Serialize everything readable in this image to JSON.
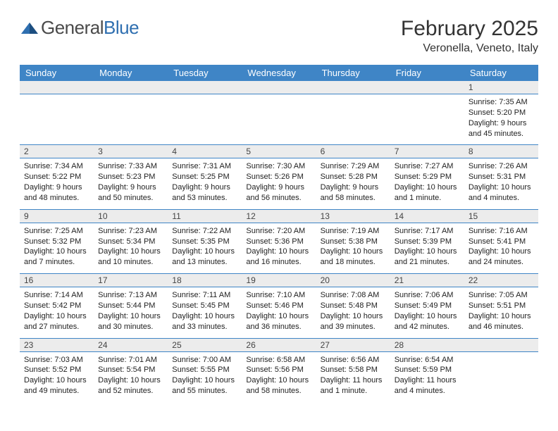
{
  "brand": {
    "part1": "General",
    "part2": "Blue"
  },
  "title": "February 2025",
  "location": "Veronella, Veneto, Italy",
  "colors": {
    "header_bg": "#3f85c6",
    "rule": "#3f85c6",
    "numrow_bg": "#ececec",
    "text": "#222222"
  },
  "font": {
    "family": "Arial",
    "title_size_pt": 22,
    "location_size_pt": 12,
    "dayhead_size_pt": 10,
    "cell_size_pt": 8
  },
  "weekday_labels": [
    "Sunday",
    "Monday",
    "Tuesday",
    "Wednesday",
    "Thursday",
    "Friday",
    "Saturday"
  ],
  "weeks": [
    [
      null,
      null,
      null,
      null,
      null,
      null,
      {
        "d": "1",
        "sunrise": "7:35 AM",
        "sunset": "5:20 PM",
        "daylight": "9 hours and 45 minutes."
      }
    ],
    [
      {
        "d": "2",
        "sunrise": "7:34 AM",
        "sunset": "5:22 PM",
        "daylight": "9 hours and 48 minutes."
      },
      {
        "d": "3",
        "sunrise": "7:33 AM",
        "sunset": "5:23 PM",
        "daylight": "9 hours and 50 minutes."
      },
      {
        "d": "4",
        "sunrise": "7:31 AM",
        "sunset": "5:25 PM",
        "daylight": "9 hours and 53 minutes."
      },
      {
        "d": "5",
        "sunrise": "7:30 AM",
        "sunset": "5:26 PM",
        "daylight": "9 hours and 56 minutes."
      },
      {
        "d": "6",
        "sunrise": "7:29 AM",
        "sunset": "5:28 PM",
        "daylight": "9 hours and 58 minutes."
      },
      {
        "d": "7",
        "sunrise": "7:27 AM",
        "sunset": "5:29 PM",
        "daylight": "10 hours and 1 minute."
      },
      {
        "d": "8",
        "sunrise": "7:26 AM",
        "sunset": "5:31 PM",
        "daylight": "10 hours and 4 minutes."
      }
    ],
    [
      {
        "d": "9",
        "sunrise": "7:25 AM",
        "sunset": "5:32 PM",
        "daylight": "10 hours and 7 minutes."
      },
      {
        "d": "10",
        "sunrise": "7:23 AM",
        "sunset": "5:34 PM",
        "daylight": "10 hours and 10 minutes."
      },
      {
        "d": "11",
        "sunrise": "7:22 AM",
        "sunset": "5:35 PM",
        "daylight": "10 hours and 13 minutes."
      },
      {
        "d": "12",
        "sunrise": "7:20 AM",
        "sunset": "5:36 PM",
        "daylight": "10 hours and 16 minutes."
      },
      {
        "d": "13",
        "sunrise": "7:19 AM",
        "sunset": "5:38 PM",
        "daylight": "10 hours and 18 minutes."
      },
      {
        "d": "14",
        "sunrise": "7:17 AM",
        "sunset": "5:39 PM",
        "daylight": "10 hours and 21 minutes."
      },
      {
        "d": "15",
        "sunrise": "7:16 AM",
        "sunset": "5:41 PM",
        "daylight": "10 hours and 24 minutes."
      }
    ],
    [
      {
        "d": "16",
        "sunrise": "7:14 AM",
        "sunset": "5:42 PM",
        "daylight": "10 hours and 27 minutes."
      },
      {
        "d": "17",
        "sunrise": "7:13 AM",
        "sunset": "5:44 PM",
        "daylight": "10 hours and 30 minutes."
      },
      {
        "d": "18",
        "sunrise": "7:11 AM",
        "sunset": "5:45 PM",
        "daylight": "10 hours and 33 minutes."
      },
      {
        "d": "19",
        "sunrise": "7:10 AM",
        "sunset": "5:46 PM",
        "daylight": "10 hours and 36 minutes."
      },
      {
        "d": "20",
        "sunrise": "7:08 AM",
        "sunset": "5:48 PM",
        "daylight": "10 hours and 39 minutes."
      },
      {
        "d": "21",
        "sunrise": "7:06 AM",
        "sunset": "5:49 PM",
        "daylight": "10 hours and 42 minutes."
      },
      {
        "d": "22",
        "sunrise": "7:05 AM",
        "sunset": "5:51 PM",
        "daylight": "10 hours and 46 minutes."
      }
    ],
    [
      {
        "d": "23",
        "sunrise": "7:03 AM",
        "sunset": "5:52 PM",
        "daylight": "10 hours and 49 minutes."
      },
      {
        "d": "24",
        "sunrise": "7:01 AM",
        "sunset": "5:54 PM",
        "daylight": "10 hours and 52 minutes."
      },
      {
        "d": "25",
        "sunrise": "7:00 AM",
        "sunset": "5:55 PM",
        "daylight": "10 hours and 55 minutes."
      },
      {
        "d": "26",
        "sunrise": "6:58 AM",
        "sunset": "5:56 PM",
        "daylight": "10 hours and 58 minutes."
      },
      {
        "d": "27",
        "sunrise": "6:56 AM",
        "sunset": "5:58 PM",
        "daylight": "11 hours and 1 minute."
      },
      {
        "d": "28",
        "sunrise": "6:54 AM",
        "sunset": "5:59 PM",
        "daylight": "11 hours and 4 minutes."
      },
      null
    ]
  ],
  "labels": {
    "sunrise": "Sunrise: ",
    "sunset": "Sunset: ",
    "daylight": "Daylight: "
  }
}
